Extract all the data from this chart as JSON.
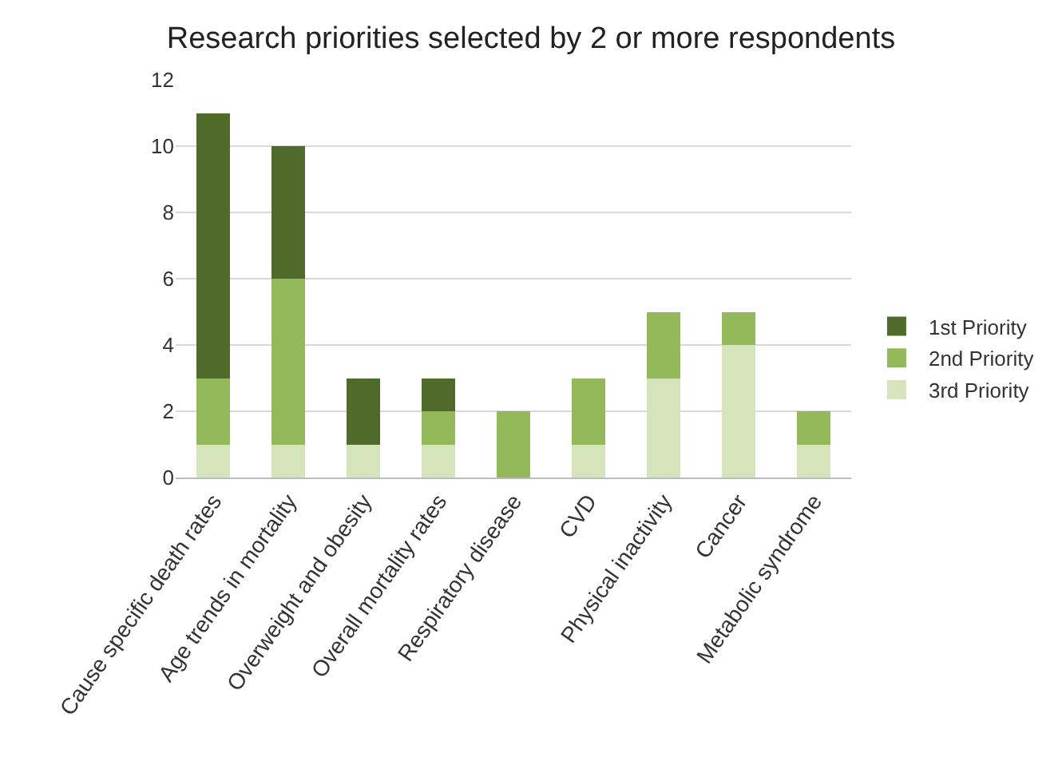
{
  "chart_data": {
    "type": "bar",
    "title": "Research priorities selected by 2 or more respondents",
    "categories": [
      "Cause specific death rates",
      "Age trends in mortality",
      "Overweight and obesity",
      "Overall mortality rates",
      "Respiratory disease",
      "CVD",
      "Physical inactivity",
      "Cancer",
      "Metabolic syndrome"
    ],
    "stacked": true,
    "series": [
      {
        "name": "3rd Priority",
        "color": "#d6e4bc",
        "values": [
          1,
          1,
          1,
          1,
          0,
          1,
          3,
          4,
          1
        ]
      },
      {
        "name": "2nd Priority",
        "color": "#93b95b",
        "values": [
          2,
          5,
          0,
          1,
          2,
          2,
          2,
          1,
          1
        ]
      },
      {
        "name": "1st Priority",
        "color": "#4f6a2b",
        "values": [
          8,
          4,
          2,
          1,
          0,
          0,
          0,
          0,
          0
        ]
      }
    ],
    "ylim": [
      0,
      12
    ],
    "yticks": [
      0,
      2,
      4,
      6,
      8,
      10,
      12
    ],
    "grid": "y",
    "legend": "right"
  }
}
